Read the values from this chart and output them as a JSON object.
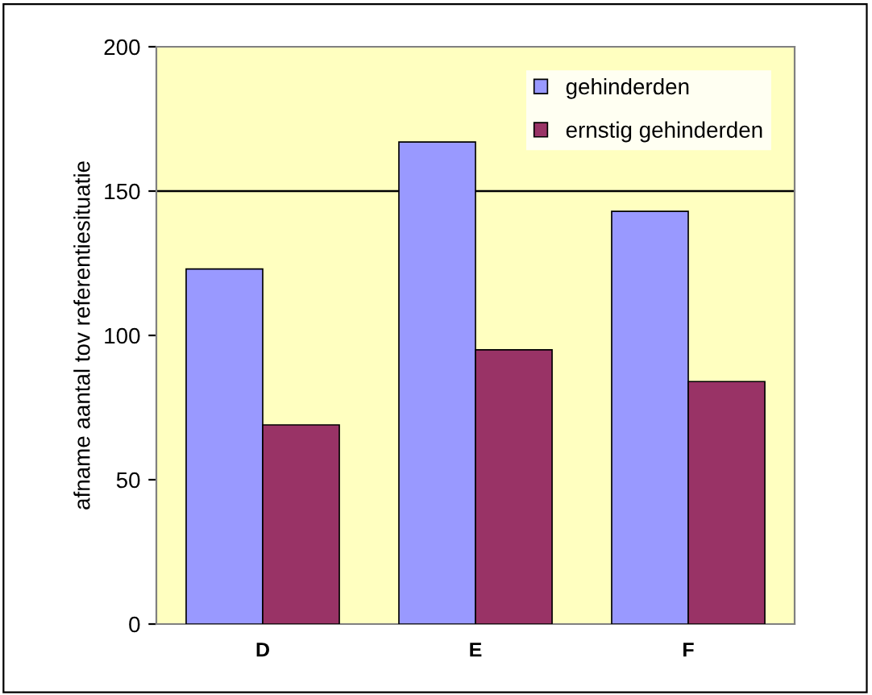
{
  "chart_data": {
    "type": "bar",
    "ylabel": "afname aantal tov referentiesituatie",
    "categories": [
      "D",
      "E",
      "F"
    ],
    "series": [
      {
        "name": "gehinderden",
        "color": "#9999ff",
        "values": [
          123,
          167,
          143
        ]
      },
      {
        "name": "ernstig gehinderden",
        "color": "#993366",
        "values": [
          69,
          95,
          84
        ]
      }
    ],
    "ylim": [
      0,
      200
    ],
    "yticks": [
      0,
      50,
      100,
      150,
      200
    ],
    "grid": false,
    "legend": "top right",
    "ref_lines": [
      {
        "axis": "y",
        "value": 150,
        "color": "#000000",
        "line_style": "solid"
      }
    ]
  }
}
